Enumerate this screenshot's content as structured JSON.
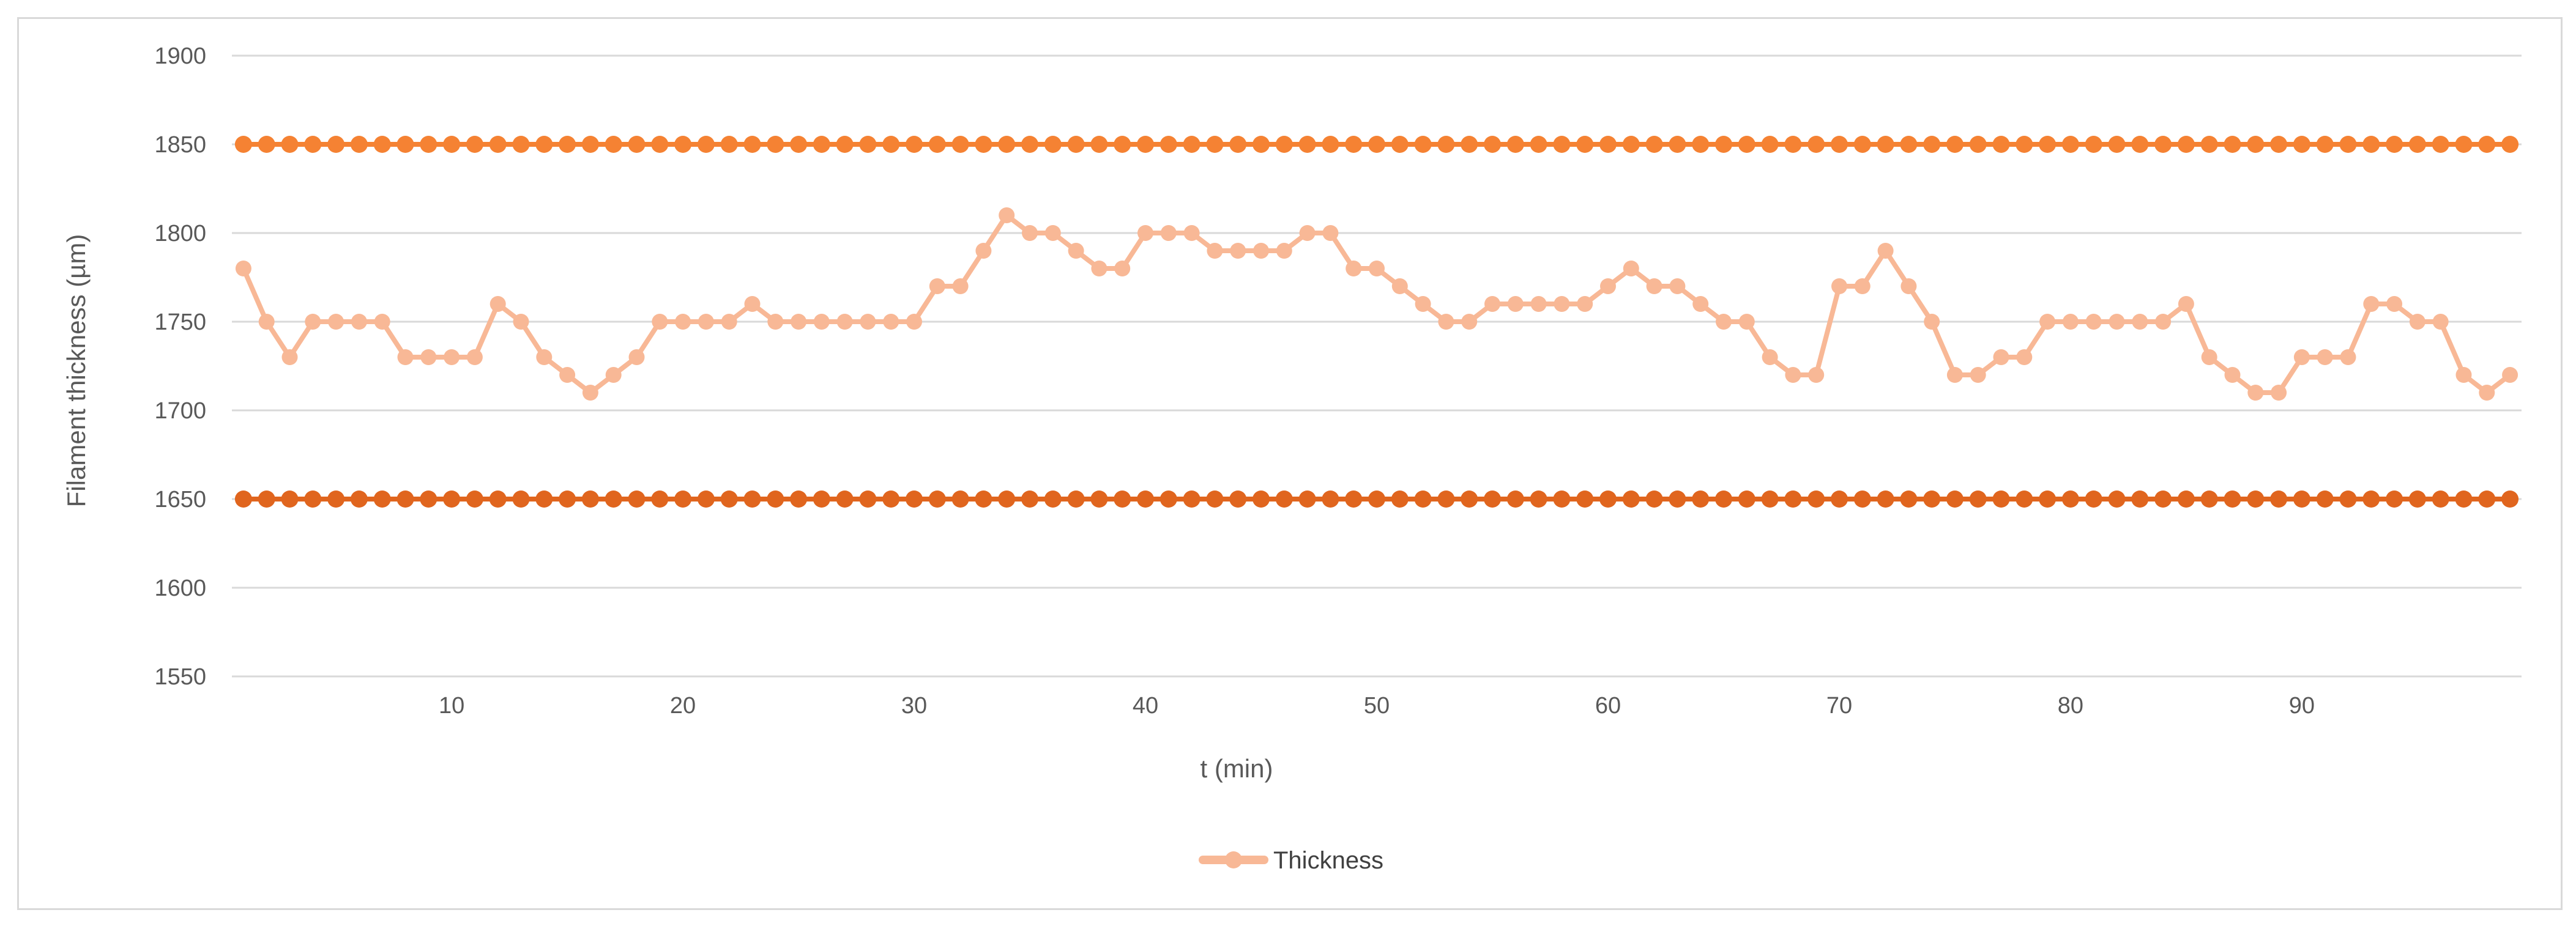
{
  "chart_data": {
    "type": "line",
    "title": "",
    "xlabel": "t (min)",
    "ylabel": "Filament thickness (µm)",
    "ylim": [
      1550,
      1900
    ],
    "yticks": [
      1550,
      1600,
      1650,
      1700,
      1750,
      1800,
      1850,
      1900
    ],
    "xticks": [
      10,
      20,
      30,
      40,
      50,
      60,
      70,
      80,
      90
    ],
    "xlim": [
      0.5,
      99.5
    ],
    "grid": true,
    "legend": "bottom-center",
    "x": [
      1,
      2,
      3,
      4,
      5,
      6,
      7,
      8,
      9,
      10,
      11,
      12,
      13,
      14,
      15,
      16,
      17,
      18,
      19,
      20,
      21,
      22,
      23,
      24,
      25,
      26,
      27,
      28,
      29,
      30,
      31,
      32,
      33,
      34,
      35,
      36,
      37,
      38,
      39,
      40,
      41,
      42,
      43,
      44,
      45,
      46,
      47,
      48,
      49,
      50,
      51,
      52,
      53,
      54,
      55,
      56,
      57,
      58,
      59,
      60,
      61,
      62,
      63,
      64,
      65,
      66,
      67,
      68,
      69,
      70,
      71,
      72,
      73,
      74,
      75,
      76,
      77,
      78,
      79,
      80,
      81,
      82,
      83,
      84,
      85,
      86,
      87,
      88,
      89,
      90,
      91,
      92,
      93,
      94,
      95,
      96,
      97,
      98,
      99
    ],
    "series": [
      {
        "name": "Thickness",
        "color": "#f8b896",
        "show_in_legend": true,
        "values": [
          1780,
          1750,
          1730,
          1750,
          1750,
          1750,
          1750,
          1730,
          1730,
          1730,
          1730,
          1760,
          1750,
          1730,
          1720,
          1710,
          1720,
          1730,
          1750,
          1750,
          1750,
          1750,
          1760,
          1750,
          1750,
          1750,
          1750,
          1750,
          1750,
          1750,
          1770,
          1770,
          1790,
          1810,
          1800,
          1800,
          1790,
          1780,
          1780,
          1800,
          1800,
          1800,
          1790,
          1790,
          1790,
          1790,
          1800,
          1800,
          1780,
          1780,
          1770,
          1760,
          1750,
          1750,
          1760,
          1760,
          1760,
          1760,
          1760,
          1770,
          1780,
          1770,
          1770,
          1760,
          1750,
          1750,
          1730,
          1720,
          1720,
          1770,
          1770,
          1790,
          1770,
          1750,
          1720,
          1720,
          1730,
          1730,
          1750,
          1750,
          1750,
          1750,
          1750,
          1750,
          1760,
          1730,
          1720,
          1710,
          1710,
          1730,
          1730,
          1730,
          1760,
          1760,
          1750,
          1750,
          1720,
          1710,
          1720
        ]
      },
      {
        "color": "#f58233",
        "show_in_legend": false,
        "constant": 1850
      },
      {
        "color": "#e0651e",
        "show_in_legend": false,
        "constant": 1650
      }
    ]
  }
}
